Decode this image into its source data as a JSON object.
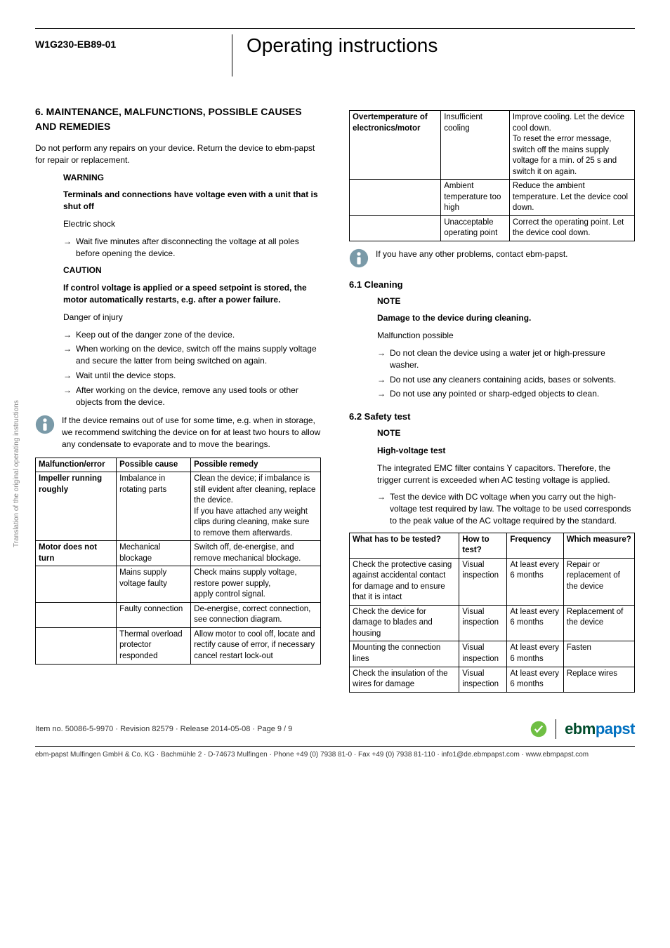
{
  "header": {
    "doc_code": "W1G230-EB89-01",
    "title": "Operating instructions"
  },
  "side_text": "Translation of the original operating instructions",
  "left": {
    "section_title": "6. MAINTENANCE, MALFUNCTIONS, POSSIBLE CAUSES AND REMEDIES",
    "intro": "Do not perform any repairs on your device. Return the device to ebm-papst for repair or replacement.",
    "warning_label": "WARNING",
    "warning_bold": "Terminals and connections have voltage even with a unit that is shut off",
    "warning_sub": "Electric shock",
    "warning_items": [
      "Wait five minutes after disconnecting the voltage at all poles before opening the device."
    ],
    "caution_label": "CAUTION",
    "caution_bold": "If control voltage is applied or a speed setpoint is stored, the motor automatically restarts, e.g. after a power failure.",
    "caution_sub": "Danger of injury",
    "caution_items": [
      "Keep out of the danger zone of the device.",
      "When working on the device, switch off the mains supply voltage and secure the latter from being switched on again.",
      "Wait until the device stops.",
      "After working on the device, remove any used tools or other objects from the device."
    ],
    "info1": "If the device remains out of use for some time, e.g. when in storage, we recommend switching the device on for at least two hours to allow any condensate to evaporate and to move the bearings.",
    "table1": {
      "headers": [
        "Malfunction/error",
        "Possible cause",
        "Possible remedy"
      ],
      "rows": [
        [
          "Impeller running roughly",
          "Imbalance in rotating parts",
          "Clean the device; if imbalance is still evident after cleaning, replace the device.\nIf you have attached any weight clips during cleaning, make sure to remove them afterwards."
        ],
        [
          "Motor does not turn",
          "Mechanical blockage",
          "Switch off, de-energise, and remove mechanical blockage."
        ],
        [
          "",
          "Mains supply voltage faulty",
          "Check mains supply voltage,\nrestore power supply,\napply control signal."
        ],
        [
          "",
          "Faulty connection",
          "De-energise, correct connection, see connection diagram."
        ],
        [
          "",
          "Thermal overload protector responded",
          "Allow motor to cool off, locate and rectify cause of error, if necessary cancel restart lock-out"
        ]
      ]
    }
  },
  "right": {
    "table2": {
      "rows": [
        [
          "Overtemperature of electronics/motor",
          "Insufficient cooling",
          "Improve cooling. Let the device cool down.\nTo reset the error message, switch off the mains supply voltage for a min. of 25 s and switch it on again."
        ],
        [
          "",
          "Ambient temperature too high",
          "Reduce the ambient temperature. Let the device cool down."
        ],
        [
          "",
          "Unacceptable operating point",
          "Correct the operating point. Let the device cool down."
        ]
      ]
    },
    "info2": "If you have any other problems, contact ebm-papst.",
    "cleaning_title": "6.1 Cleaning",
    "cleaning_note_label": "NOTE",
    "cleaning_note_bold": "Damage to the device during cleaning.",
    "cleaning_note_sub": "Malfunction possible",
    "cleaning_items": [
      "Do not clean the device using a water jet or high-pressure washer.",
      "Do not use any cleaners containing acids, bases or solvents.",
      "Do not use any pointed or sharp-edged objects to clean."
    ],
    "safety_title": "6.2 Safety test",
    "safety_note_label": "NOTE",
    "safety_note_bold": "High-voltage test",
    "safety_note_text": "The integrated EMC filter contains Y capacitors. Therefore, the trigger current is exceeded when AC testing voltage is applied.",
    "safety_items": [
      "Test the device with DC voltage when you carry out the high-voltage test required by law. The voltage to be used corresponds to the peak value of the AC voltage required by the standard."
    ],
    "table3": {
      "headers": [
        "What has to be tested?",
        "How to test?",
        "Frequency",
        "Which measure?"
      ],
      "rows": [
        [
          "Check the protective casing against accidental contact for damage and to ensure that it is intact",
          "Visual inspection",
          "At least every 6 months",
          "Repair or replacement of the device"
        ],
        [
          "Check the device for damage to blades and housing",
          "Visual inspection",
          "At least every 6 months",
          "Replacement of the device"
        ],
        [
          "Mounting the connection lines",
          "Visual inspection",
          "At least every 6 months",
          "Fasten"
        ],
        [
          "Check the insulation of the wires for damage",
          "Visual inspection",
          "At least every 6 months",
          "Replace wires"
        ]
      ]
    }
  },
  "footer": {
    "meta": "Item no. 50086-5-9970 · Revision 82579 · Release 2014-05-08 · Page 9 / 9",
    "brand_ebm": "ebm",
    "brand_papst": "papst",
    "line": "ebm-papst Mulfingen GmbH & Co. KG · Bachmühle 2 · D-74673 Mulfingen · Phone +49 (0) 7938 81-0 · Fax +49 (0) 7938 81-110 · info1@de.ebmpapst.com · www.ebmpapst.com"
  },
  "colors": {
    "info_icon": "#7a9aa8",
    "badge": "#6fbf44"
  }
}
